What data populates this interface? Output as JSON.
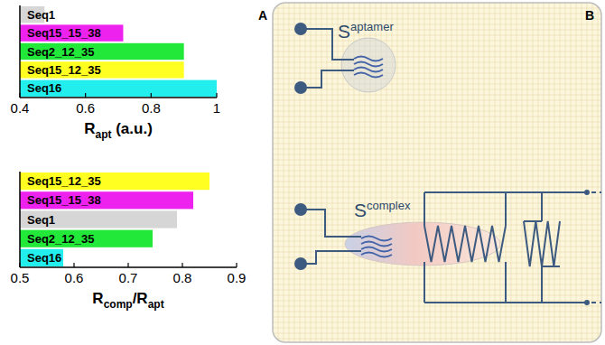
{
  "panel_a": {
    "letter": "A"
  },
  "panel_b": {
    "letter": "B",
    "aptamer_label": {
      "main": "S",
      "sub": "aptamer"
    },
    "complex_label": {
      "main": "S",
      "sub": "complex"
    }
  },
  "chart_data": [
    {
      "type": "bar",
      "orientation": "horizontal",
      "categories": [
        "Seq1",
        "Seq15_15_38",
        "Seq2_12_35",
        "Seq15_12_35",
        "Seq16"
      ],
      "values": [
        0.475,
        0.715,
        0.9,
        0.9,
        1.0
      ],
      "colors": [
        "#d6d6d6",
        "#ee22ee",
        "#22e83a",
        "#ffff22",
        "#22eeee"
      ],
      "x_label": {
        "main": "R",
        "sub": "apt",
        "suffix": " (a.u.)"
      },
      "xlim": [
        0.4,
        1
      ],
      "xticks": [
        0.4,
        0.6,
        0.8,
        1
      ]
    },
    {
      "type": "bar",
      "orientation": "horizontal",
      "categories": [
        "Seq15_12_35",
        "Seq15_15_38",
        "Seq1",
        "Seq2_12_35",
        "Seq16"
      ],
      "values": [
        0.85,
        0.82,
        0.79,
        0.745,
        0.58
      ],
      "colors": [
        "#ffff22",
        "#ee22ee",
        "#d6d6d6",
        "#22e83a",
        "#22eeee"
      ],
      "x_label": {
        "main": "R",
        "sub": "comp",
        "mid": "/R",
        "sub2": "apt"
      },
      "xlim": [
        0.5,
        0.9
      ],
      "xticks": [
        0.5,
        0.6,
        0.7,
        0.8,
        0.9
      ]
    }
  ]
}
